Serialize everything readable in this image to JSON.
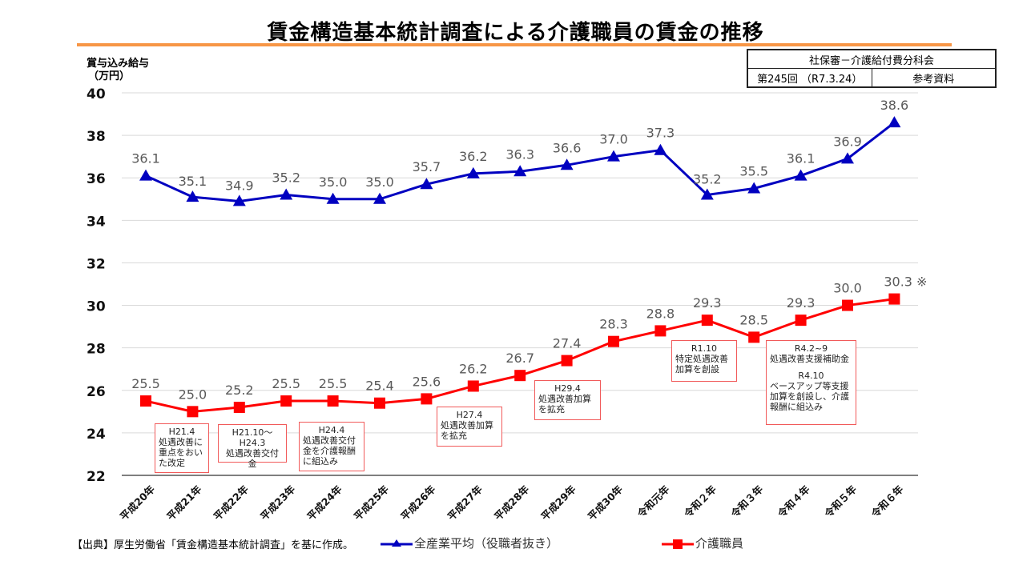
{
  "slide": {
    "title": "賃金構造基本統計調査による介護職員の賃金の推移",
    "meta": {
      "committee": "社保審－介護給付費分科会",
      "session": "第245回 （R7.3.24）",
      "doc_type": "参考資料"
    },
    "source_note": "【出典】厚生労働省「賃金構造基本統計調査」を基に作成。",
    "accent_color": "#f79646"
  },
  "chart_data": {
    "type": "line",
    "title": "賃金構造基本統計調査による介護職員の賃金の推移",
    "ylabel": "賞与込み給与\n（万円）",
    "ylabel_lines": [
      "賞与込み給与",
      "（万円）"
    ],
    "xlabel": "",
    "ylim": [
      22,
      40
    ],
    "yticks": [
      40,
      38,
      36,
      34,
      32,
      30,
      28,
      26,
      24,
      22
    ],
    "grid": true,
    "legend_position": "bottom",
    "categories": [
      "平成20年",
      "平成21年",
      "平成22年",
      "平成23年",
      "平成24年",
      "平成25年",
      "平成26年",
      "平成27年",
      "平成28年",
      "平成29年",
      "平成30年",
      "令和元年",
      "令和２年",
      "令和３年",
      "令和４年",
      "令和５年",
      "令和６年"
    ],
    "series": [
      {
        "name": "全産業平均（役職者抜き）",
        "color": "#0000c0",
        "marker": "triangle",
        "values": [
          36.1,
          35.1,
          34.9,
          35.2,
          35.0,
          35.0,
          35.7,
          36.2,
          36.3,
          36.6,
          37.0,
          37.3,
          35.2,
          35.5,
          36.1,
          36.9,
          38.6
        ],
        "labels": [
          "36.1",
          "35.1",
          "34.9",
          "35.2",
          "35.0",
          "35.0",
          "35.7",
          "36.2",
          "36.3",
          "36.6",
          "37.0",
          "37.3",
          "35.2",
          "35.5",
          "36.1",
          "36.9",
          "38.6"
        ]
      },
      {
        "name": "介護職員",
        "color": "#ff0000",
        "marker": "square",
        "values": [
          25.5,
          25.0,
          25.2,
          25.5,
          25.5,
          25.4,
          25.6,
          26.2,
          26.7,
          27.4,
          28.3,
          28.8,
          29.3,
          28.5,
          29.3,
          30.0,
          30.3
        ],
        "labels": [
          "25.5",
          "25.0",
          "25.2",
          "25.5",
          "25.5",
          "25.4",
          "25.6",
          "26.2",
          "26.7",
          "27.4",
          "28.3",
          "28.8",
          "29.3",
          "28.5",
          "29.3",
          "30.0",
          "30.3 ※"
        ]
      }
    ],
    "annotations": [
      {
        "heading": "H21.4",
        "text": "処遇改善に\n重点をおい\nた改定"
      },
      {
        "heading": "H21.10～\nH24.3",
        "text": "処遇改善交付金"
      },
      {
        "heading": "H24.4",
        "text": "処遇改善交付\n金を介護報酬\nに組込み"
      },
      {
        "heading": "H27.4",
        "text": "処遇改善加算\nを拡充"
      },
      {
        "heading": "H29.4",
        "text": "処遇改善加算\nを拡充"
      },
      {
        "heading": "R1.10",
        "text": "特定処遇改善\n加算を創設"
      },
      {
        "heading": "R4.2~9",
        "text": "処遇改善支援補助金",
        "heading2": "R4.10",
        "text2": "ベースアップ等支援\n加算を創設し、介護\n報酬に組込み"
      }
    ]
  }
}
